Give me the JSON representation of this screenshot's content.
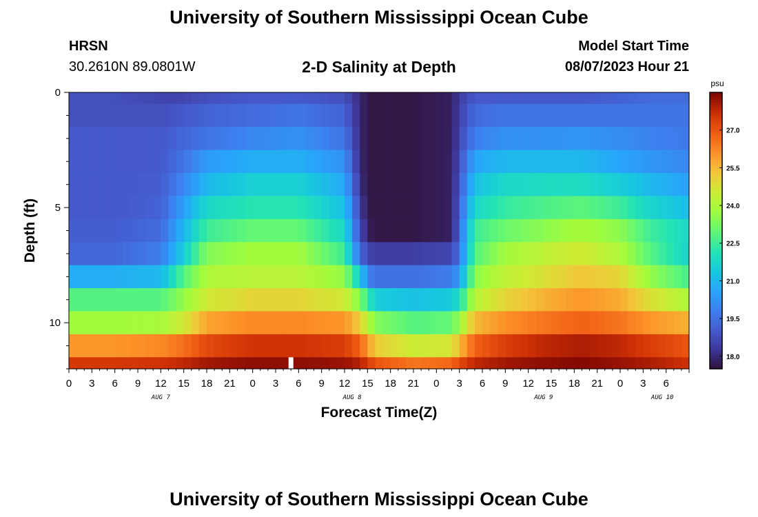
{
  "header": {
    "title": "University of Southern Mississippi Ocean Cube",
    "station": "HRSN",
    "coordinates": "30.2610N  89.0801W",
    "subtitle": "2-D Salinity at Depth",
    "model_start_label": "Model Start Time",
    "model_start_value": "08/07/2023 Hour 21"
  },
  "footer": {
    "title": "University of Southern Mississippi Ocean Cube"
  },
  "chart_data": {
    "type": "heatmap",
    "title": "2-D Salinity at Depth",
    "xlabel": "Forecast Time(Z)",
    "ylabel": "Depth (ft)",
    "units": "psu",
    "x_range_hours": [
      0,
      81
    ],
    "x_tick_labels": [
      "0",
      "3",
      "6",
      "9",
      "12",
      "15",
      "18",
      "21",
      "0",
      "3",
      "6",
      "9",
      "12",
      "15",
      "18",
      "21",
      "0",
      "3",
      "6",
      "9",
      "12",
      "15",
      "18",
      "21",
      "0",
      "3",
      "6"
    ],
    "day_labels": [
      {
        "label": "AUG 7",
        "hour": 12
      },
      {
        "label": "AUG 8",
        "hour": 37
      },
      {
        "label": "AUG 9",
        "hour": 62
      },
      {
        "label": "AUG 10",
        "hour": 77.5
      }
    ],
    "y_range_ft": [
      0,
      12
    ],
    "y_tick_labels": [
      "0",
      "5",
      "10"
    ],
    "y_tick_values": [
      0,
      5,
      10
    ],
    "colorbar": {
      "min": 17.5,
      "max": 28.5,
      "tick_values": [
        18.0,
        19.5,
        21.0,
        22.5,
        24.0,
        25.5,
        27.0
      ],
      "tick_labels": [
        "18.0",
        "19.5",
        "21.0",
        "22.5",
        "24.0",
        "25.5",
        "27.0"
      ]
    },
    "current_time_marker_hour": 29,
    "layers_ft": [
      {
        "top": 0.0,
        "bottom": 0.5
      },
      {
        "top": 0.5,
        "bottom": 1.5
      },
      {
        "top": 1.5,
        "bottom": 2.5
      },
      {
        "top": 2.5,
        "bottom": 3.5
      },
      {
        "top": 3.5,
        "bottom": 4.5
      },
      {
        "top": 4.5,
        "bottom": 5.5
      },
      {
        "top": 5.5,
        "bottom": 6.5
      },
      {
        "top": 6.5,
        "bottom": 7.5
      },
      {
        "top": 7.5,
        "bottom": 8.5
      },
      {
        "top": 8.5,
        "bottom": 9.5
      },
      {
        "top": 9.5,
        "bottom": 10.5
      },
      {
        "top": 10.5,
        "bottom": 11.5
      },
      {
        "top": 11.5,
        "bottom": 12.0
      }
    ],
    "keyframe_hours": [
      0,
      6,
      12,
      15,
      18,
      24,
      30,
      36,
      38,
      39,
      40,
      45,
      50,
      51,
      53,
      57,
      62,
      67,
      72,
      76,
      81
    ],
    "salinity_keyframes": [
      [
        18.8,
        18.8,
        18.6,
        18.6,
        18.8,
        19.0,
        19.0,
        18.8,
        18.0,
        17.6,
        17.6,
        17.6,
        17.8,
        18.4,
        19.0,
        19.0,
        19.0,
        19.0,
        19.2,
        19.4,
        19.4
      ],
      [
        18.8,
        18.8,
        18.8,
        19.0,
        19.2,
        19.4,
        19.6,
        19.2,
        18.0,
        17.6,
        17.6,
        17.6,
        17.8,
        18.5,
        19.4,
        19.6,
        19.6,
        19.6,
        19.6,
        19.6,
        19.6
      ],
      [
        19.0,
        19.0,
        19.0,
        19.3,
        19.6,
        20.0,
        20.2,
        19.6,
        18.0,
        17.6,
        17.6,
        17.6,
        17.8,
        18.6,
        19.8,
        20.2,
        20.2,
        20.3,
        20.1,
        19.9,
        19.7
      ],
      [
        19.0,
        19.0,
        19.0,
        19.6,
        20.4,
        20.8,
        20.8,
        20.2,
        18.0,
        17.6,
        17.6,
        17.6,
        17.8,
        18.8,
        20.6,
        21.0,
        21.0,
        21.0,
        20.6,
        20.3,
        20.0
      ],
      [
        19.0,
        19.0,
        19.1,
        20.0,
        21.0,
        21.6,
        21.6,
        20.7,
        18.2,
        17.6,
        17.6,
        17.6,
        17.8,
        19.0,
        21.2,
        21.8,
        21.9,
        21.9,
        21.5,
        21.0,
        20.5
      ],
      [
        19.0,
        19.0,
        19.2,
        20.5,
        21.8,
        22.2,
        22.2,
        21.2,
        18.5,
        17.6,
        17.6,
        17.6,
        17.8,
        19.2,
        21.8,
        22.4,
        22.7,
        22.9,
        22.5,
        21.7,
        21.1
      ],
      [
        19.1,
        19.1,
        19.4,
        21.0,
        22.5,
        23.0,
        23.0,
        21.8,
        18.8,
        17.8,
        17.6,
        17.6,
        17.8,
        19.4,
        22.5,
        23.1,
        23.5,
        23.9,
        23.5,
        22.5,
        21.8
      ],
      [
        19.3,
        19.3,
        19.8,
        21.5,
        23.4,
        23.8,
        23.8,
        22.5,
        19.4,
        18.6,
        18.4,
        18.4,
        18.6,
        19.6,
        22.8,
        23.8,
        24.3,
        24.6,
        24.0,
        22.8,
        21.7
      ],
      [
        20.8,
        20.8,
        21.0,
        22.8,
        24.0,
        24.2,
        24.2,
        23.6,
        21.5,
        20.0,
        19.5,
        19.5,
        19.8,
        20.4,
        23.5,
        24.3,
        24.8,
        25.3,
        25.0,
        23.6,
        22.6
      ],
      [
        22.8,
        22.8,
        22.8,
        23.6,
        24.6,
        25.0,
        25.0,
        24.6,
        23.4,
        22.4,
        21.5,
        21.2,
        21.4,
        22.0,
        24.2,
        25.0,
        25.6,
        26.0,
        25.7,
        24.8,
        24.0
      ],
      [
        23.8,
        23.8,
        23.9,
        24.6,
        25.8,
        26.2,
        26.2,
        26.0,
        25.2,
        24.2,
        23.4,
        22.8,
        23.0,
        23.7,
        25.5,
        26.1,
        26.5,
        26.8,
        26.5,
        26.0,
        25.6
      ],
      [
        26.0,
        26.0,
        26.2,
        26.6,
        27.2,
        27.6,
        27.6,
        27.4,
        26.8,
        26.0,
        25.2,
        24.5,
        24.7,
        25.5,
        26.8,
        27.4,
        27.8,
        28.0,
        27.8,
        27.4,
        27.0
      ],
      [
        27.5,
        27.5,
        27.6,
        27.8,
        28.1,
        28.3,
        28.3,
        28.2,
        27.9,
        27.5,
        27.0,
        26.5,
        26.7,
        27.2,
        27.8,
        28.1,
        28.3,
        28.4,
        28.2,
        28.0,
        27.6
      ]
    ]
  }
}
